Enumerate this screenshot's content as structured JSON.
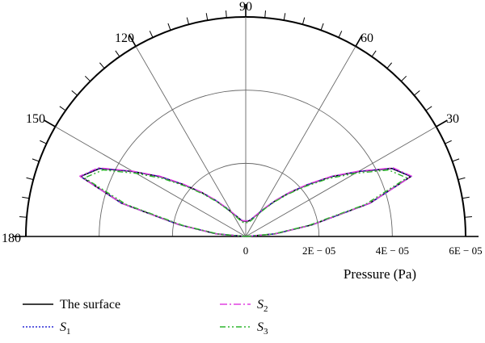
{
  "chart_data": {
    "type": "polar-line",
    "angular_unit": "degrees",
    "theta_range": [
      0,
      180
    ],
    "r_range": [
      0,
      6e-05
    ],
    "grid": true,
    "legend_position": "bottom",
    "angle_ticks": [
      {
        "value": 90,
        "label": "90"
      },
      {
        "value": 120,
        "label": "120"
      },
      {
        "value": 60,
        "label": "60"
      },
      {
        "value": 150,
        "label": "150"
      },
      {
        "value": 30,
        "label": "30"
      },
      {
        "value": 180,
        "label": "180"
      }
    ],
    "r_ticks": [
      {
        "value": 0,
        "label": "0"
      },
      {
        "value": 2e-05,
        "label": "2E − 05"
      },
      {
        "value": 4e-05,
        "label": "4E − 05"
      },
      {
        "value": 6e-05,
        "label": "6E − 05"
      }
    ],
    "r_axis_label": "Pressure (Pa)",
    "series": [
      {
        "name": "The surface",
        "name_base": "The surface",
        "name_sub": "",
        "color": "#000000",
        "dash": "",
        "theta": [
          0,
          5,
          10,
          15,
          20,
          25,
          30,
          35,
          40,
          45,
          50,
          55,
          60,
          65,
          70,
          75,
          80,
          85,
          90,
          95,
          100,
          105,
          110,
          115,
          120,
          125,
          130,
          135,
          140,
          145,
          150,
          155,
          160,
          165,
          170,
          175,
          180
        ],
        "r": [
          0,
          8e-06,
          1.85e-05,
          3.5e-05,
          4.8e-05,
          4.4e-05,
          3.55e-05,
          2.85e-05,
          2.2e-05,
          1.7e-05,
          1.3e-05,
          9.8e-06,
          7.6e-06,
          6.2e-06,
          5.2e-06,
          4.6e-06,
          4.3e-06,
          4.2e-06,
          4.2e-06,
          4.2e-06,
          4.3e-06,
          4.6e-06,
          5.2e-06,
          6.2e-06,
          7.6e-06,
          9.8e-06,
          1.3e-05,
          1.7e-05,
          2.2e-05,
          2.85e-05,
          3.55e-05,
          4.4e-05,
          4.8e-05,
          3.5e-05,
          1.85e-05,
          8e-06,
          0
        ]
      },
      {
        "name": "S1",
        "name_base": "S",
        "name_sub": "1",
        "color": "#2a2ad6",
        "dash": "2,2",
        "theta": [
          0,
          5,
          10,
          15,
          20,
          25,
          30,
          35,
          40,
          45,
          50,
          55,
          60,
          65,
          70,
          75,
          80,
          85,
          90,
          95,
          100,
          105,
          110,
          115,
          120,
          125,
          130,
          135,
          140,
          145,
          150,
          155,
          160,
          165,
          170,
          175,
          180
        ],
        "r": [
          0,
          8e-06,
          1.85e-05,
          3.52e-05,
          4.8e-05,
          4.41e-05,
          3.56e-05,
          2.86e-05,
          2.21e-05,
          1.71e-05,
          1.31e-05,
          9.9e-06,
          7.7e-06,
          6.3e-06,
          5.3e-06,
          4.7e-06,
          4.4e-06,
          4.3e-06,
          4.3e-06,
          4.3e-06,
          4.4e-06,
          4.7e-06,
          5.3e-06,
          6.3e-06,
          7.7e-06,
          9.9e-06,
          1.31e-05,
          1.71e-05,
          2.21e-05,
          2.86e-05,
          3.56e-05,
          4.41e-05,
          4.8e-05,
          3.52e-05,
          1.85e-05,
          8e-06,
          0
        ]
      },
      {
        "name": "S2",
        "name_base": "S",
        "name_sub": "2",
        "color": "#e040e0",
        "dash": "9,3,2,3",
        "theta": [
          0,
          5,
          10,
          15,
          20,
          25,
          30,
          35,
          40,
          45,
          50,
          55,
          60,
          65,
          70,
          75,
          80,
          85,
          90,
          95,
          100,
          105,
          110,
          115,
          120,
          125,
          130,
          135,
          140,
          145,
          150,
          155,
          160,
          165,
          170,
          175,
          180
        ],
        "r": [
          0,
          7.9e-06,
          1.84e-05,
          3.5e-05,
          4.82e-05,
          4.44e-05,
          3.58e-05,
          2.88e-05,
          2.23e-05,
          1.72e-05,
          1.32e-05,
          1e-05,
          7.8e-06,
          6.3e-06,
          5.3e-06,
          4.7e-06,
          4.4e-06,
          4.3e-06,
          4.3e-06,
          4.3e-06,
          4.4e-06,
          4.7e-06,
          5.3e-06,
          6.3e-06,
          7.8e-06,
          1e-05,
          1.32e-05,
          1.72e-05,
          2.23e-05,
          2.88e-05,
          3.58e-05,
          4.44e-05,
          4.82e-05,
          3.5e-05,
          1.84e-05,
          7.9e-06,
          0
        ]
      },
      {
        "name": "S3",
        "name_base": "S",
        "name_sub": "3",
        "color": "#2fb52f",
        "dash": "7,3,2,3,2,3",
        "theta": [
          0,
          5,
          10,
          15,
          20,
          25,
          30,
          35,
          40,
          45,
          50,
          55,
          60,
          65,
          70,
          75,
          80,
          85,
          90,
          95,
          100,
          105,
          110,
          115,
          120,
          125,
          130,
          135,
          140,
          145,
          150,
          155,
          160,
          165,
          170,
          175,
          180
        ],
        "r": [
          0,
          7.5e-06,
          1.75e-05,
          3.38e-05,
          4.68e-05,
          4.3e-05,
          3.45e-05,
          2.76e-05,
          2.13e-05,
          1.64e-05,
          1.25e-05,
          9.4e-06,
          7.2e-06,
          5.8e-06,
          4.8e-06,
          4.2e-06,
          3.9e-06,
          3.8e-06,
          3.8e-06,
          3.8e-06,
          3.9e-06,
          4.2e-06,
          4.8e-06,
          5.8e-06,
          7.2e-06,
          9.4e-06,
          1.25e-05,
          1.64e-05,
          2.13e-05,
          2.76e-05,
          3.45e-05,
          4.3e-05,
          4.68e-05,
          3.38e-05,
          1.75e-05,
          7.5e-06,
          0
        ]
      }
    ]
  }
}
